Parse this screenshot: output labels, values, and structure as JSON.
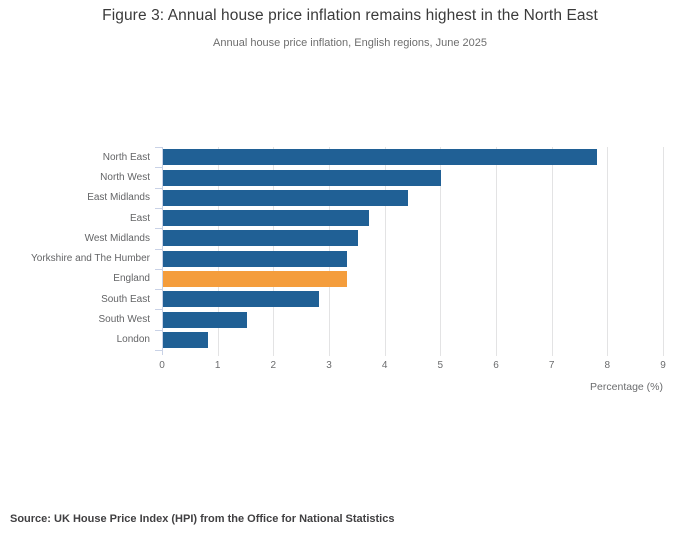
{
  "page": {
    "title": "Figure 3: Annual house price inflation remains highest in the North East",
    "subtitle": "Annual house price inflation, English regions, June 2025",
    "source": "Source: UK House Price Index (HPI) from the Office for National Statistics"
  },
  "chart_data": {
    "type": "bar",
    "orientation": "horizontal",
    "title": "Figure 3: Annual house price inflation remains highest in the North East",
    "subtitle": "Annual house price inflation, English regions, June 2025",
    "categories": [
      "North East",
      "North West",
      "East Midlands",
      "East",
      "West Midlands",
      "Yorkshire and The Humber",
      "England",
      "South East",
      "South West",
      "London"
    ],
    "values": [
      7.8,
      5.0,
      4.4,
      3.7,
      3.5,
      3.3,
      3.3,
      2.8,
      1.5,
      0.8
    ],
    "highlight_category": "England",
    "xlabel": "Percentage (%)",
    "ylabel": "",
    "x_ticks": [
      0,
      1,
      2,
      3,
      4,
      5,
      6,
      7,
      8,
      9
    ],
    "xlim": [
      0,
      9
    ],
    "grid": "vertical",
    "legend": "none",
    "colors": {
      "bar": "#206095",
      "highlight": "#f49d3c",
      "gridline": "#e3e3e4",
      "axis": "#c9d2e6"
    }
  }
}
